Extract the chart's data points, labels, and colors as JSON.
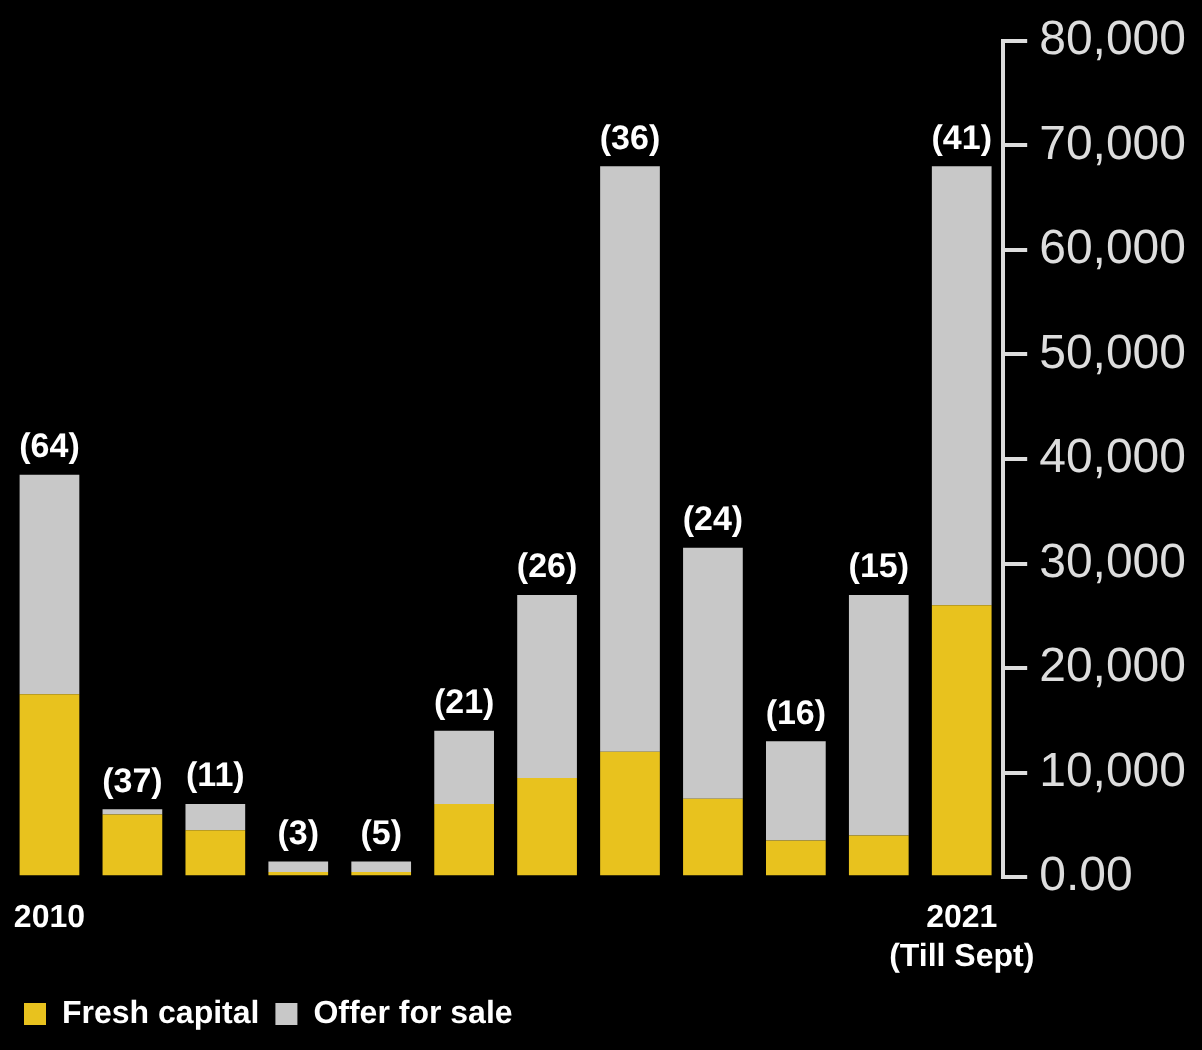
{
  "chart_data": {
    "type": "bar",
    "stacked": true,
    "categories": [
      "2010",
      null,
      null,
      null,
      null,
      null,
      null,
      null,
      null,
      null,
      null,
      "2021\n(Till Sept)"
    ],
    "series": [
      {
        "name": "Fresh capital",
        "color": "#e8c21e",
        "values": [
          17500,
          6000,
          4500,
          500,
          500,
          7000,
          9500,
          12000,
          7500,
          3500,
          4000,
          26000
        ]
      },
      {
        "name": "Offer for sale",
        "color": "#c8c8c8",
        "values": [
          21000,
          500,
          2500,
          1000,
          1000,
          7000,
          17500,
          56000,
          24000,
          9500,
          23000,
          42000
        ]
      }
    ],
    "annotations": [
      "(64)",
      "(37)",
      "(11)",
      "(3)",
      "(5)",
      "(21)",
      "(26)",
      "(36)",
      "(24)",
      "(16)",
      "(15)",
      "(41)"
    ],
    "ylim": [
      0,
      80000
    ],
    "yticks": [
      {
        "value": 0,
        "label": "0.00"
      },
      {
        "value": 10000,
        "label": "10,000"
      },
      {
        "value": 20000,
        "label": "20,000"
      },
      {
        "value": 30000,
        "label": "30,000"
      },
      {
        "value": 40000,
        "label": "40,000"
      },
      {
        "value": 50000,
        "label": "50,000"
      },
      {
        "value": 60000,
        "label": "60,000"
      },
      {
        "value": 70000,
        "label": "70,000"
      },
      {
        "value": 80000,
        "label": "80,000"
      }
    ],
    "legend": "bottom left"
  }
}
